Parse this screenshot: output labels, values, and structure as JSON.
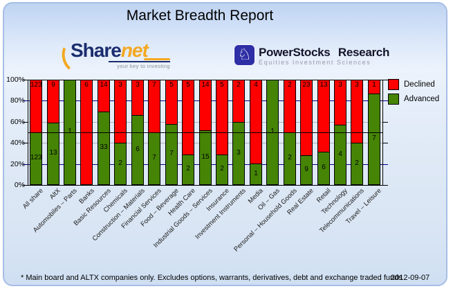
{
  "title": "Market Breadth Report",
  "logos": {
    "sharenet": {
      "text_share": "Share",
      "text_net": "net",
      "tagline": "your key to investing",
      "navy": "#1b2d6e",
      "orange": "#f4a820"
    },
    "powerstocks": {
      "title": "PowerStocks Research",
      "subtitle": "Equities Investment Sciences",
      "badge_color": "#2e2ea6",
      "knight_glyph": "♘"
    }
  },
  "chart_data": {
    "type": "bar",
    "stacking": "percent",
    "title": "Market Breadth Report",
    "categories": [
      "All share",
      "AltX",
      "Automobiles – Parts",
      "Banks",
      "Basic Resources",
      "Chemicals",
      "Construction – Materials",
      "Financial Services",
      "Food – Beverage",
      "Health Care",
      "Industrial Goods – Services",
      "Insurance",
      "Investment Instruments",
      "Media",
      "Oil – Gas",
      "Personal – Household Goods",
      "Real Estate",
      "Retail",
      "Technology",
      "Telecommunications",
      "Travel – Leisure"
    ],
    "series": [
      {
        "name": "Declined",
        "color": "#ff0000",
        "values": [
          123,
          9,
          0,
          6,
          14,
          3,
          3,
          7,
          5,
          5,
          14,
          5,
          2,
          4,
          0,
          2,
          23,
          13,
          3,
          3,
          1
        ]
      },
      {
        "name": "Advanced",
        "color": "#458405",
        "values": [
          123,
          13,
          1,
          0,
          33,
          2,
          6,
          7,
          7,
          2,
          15,
          2,
          3,
          1,
          1,
          2,
          9,
          6,
          4,
          2,
          7
        ]
      }
    ],
    "value_labels": true,
    "xlabel": "",
    "ylabel": "",
    "ylim": [
      0,
      100
    ],
    "yticks": [
      100,
      80,
      60,
      40,
      20,
      0
    ],
    "ytick_suffix": "%",
    "grid": {
      "back_lines": [
        {
          "pct": 80,
          "color": "#000080"
        },
        {
          "pct": 60,
          "color": "#b0b0b0"
        },
        {
          "pct": 40,
          "color": "#b0b0b0"
        },
        {
          "pct": 20,
          "color": "#000080"
        }
      ],
      "front_lines": [
        {
          "pct": 100,
          "color": "#000000"
        },
        {
          "pct": 50,
          "color": "#000000"
        },
        {
          "pct": 0,
          "color": "#000000"
        }
      ]
    },
    "legend_position": "right-top"
  },
  "legend": {
    "items": [
      {
        "label": "Declined",
        "color": "#ff0000"
      },
      {
        "label": "Advanced",
        "color": "#458405"
      }
    ]
  },
  "footer": {
    "disclaimer": "* Main board and ALTX companies only. Excludes options, warrants, derivatives, debt and exchange traded funds",
    "date": "2012-09-07"
  }
}
